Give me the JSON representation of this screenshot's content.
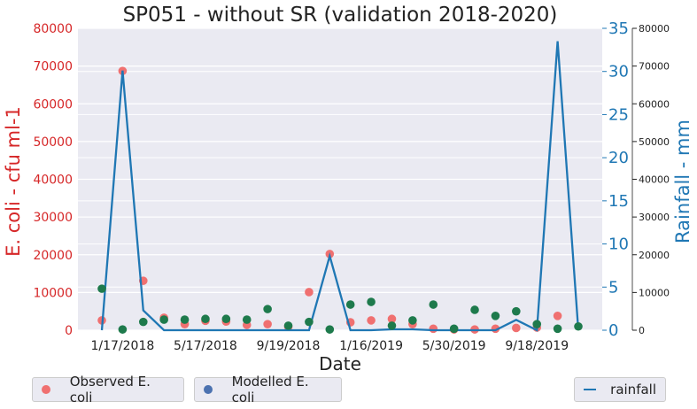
{
  "chart_data": {
    "type": "scatter+line",
    "title": "SP051 - without SR (validation 2018-2020)",
    "xlabel": "Date",
    "ylabel": "E. coli - cfu ml-1",
    "y2label": "Rainfall - mm",
    "ylim": [
      0,
      80000
    ],
    "y2lim": [
      0,
      35
    ],
    "y3lim": [
      0,
      80000
    ],
    "yticks": [
      "0",
      "10000",
      "20000",
      "30000",
      "40000",
      "50000",
      "60000",
      "70000",
      "80000"
    ],
    "y2ticks": [
      "0",
      "5",
      "10",
      "15",
      "20",
      "25",
      "30",
      "35"
    ],
    "y3ticks": [
      "0",
      "10000",
      "20000",
      "30000",
      "40000",
      "50000",
      "60000",
      "70000",
      "80000"
    ],
    "xticks": [
      {
        "index": 1,
        "label": "1/17/2018"
      },
      {
        "index": 5,
        "label": "5/17/2018"
      },
      {
        "index": 9,
        "label": "9/19/2018"
      },
      {
        "index": 13,
        "label": "1/16/2019"
      },
      {
        "index": 17,
        "label": "5/30/2019"
      },
      {
        "index": 21,
        "label": "9/18/2019"
      }
    ],
    "grid": true,
    "series": [
      {
        "name": "Observed E. coli",
        "type": "scatter",
        "color": "#f07070",
        "values": [
          2600,
          68700,
          13100,
          3300,
          1600,
          2500,
          2300,
          1400,
          1600,
          900,
          10100,
          20200,
          2100,
          2600,
          3000,
          1600,
          400,
          200,
          200,
          400,
          600,
          700,
          3800,
          null
        ]
      },
      {
        "name": "Modelled E. coli",
        "type": "scatter",
        "color": "#1e7a4c",
        "legend_color": "#4c72b0",
        "values": [
          11000,
          200,
          2200,
          2800,
          2800,
          3000,
          3000,
          2800,
          5600,
          1200,
          2200,
          200,
          6800,
          7500,
          1200,
          2600,
          6800,
          400,
          5400,
          3800,
          5000,
          1600,
          400,
          1000
        ]
      },
      {
        "name": "rainfall",
        "type": "line",
        "color": "#1f77b4",
        "axis": "right",
        "values": [
          0,
          30.1,
          2.3,
          0,
          0,
          0,
          0,
          0,
          0,
          0,
          0,
          8.6,
          0,
          0,
          0.1,
          0.1,
          0,
          0,
          0,
          0,
          1.2,
          0,
          33.5,
          0
        ]
      }
    ],
    "legend": [
      {
        "label": "Observed E. coli",
        "placement": "bottom-left"
      },
      {
        "label": "Modelled E. coli",
        "placement": "bottom-left"
      },
      {
        "label": "rainfall",
        "placement": "bottom-right"
      }
    ]
  }
}
